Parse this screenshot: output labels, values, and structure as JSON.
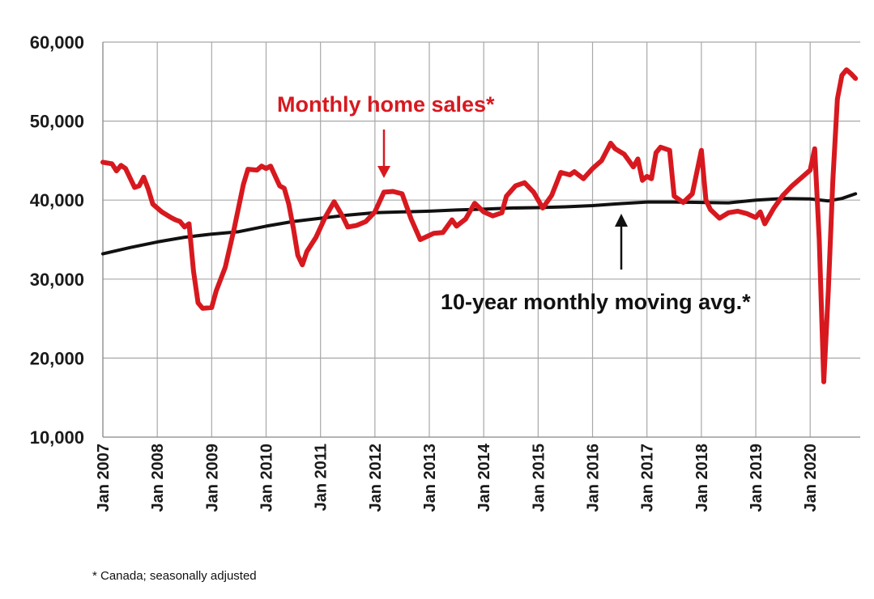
{
  "chart_data": {
    "type": "line",
    "ylim": [
      10000,
      60000
    ],
    "yticks": [
      10000,
      20000,
      30000,
      40000,
      50000,
      60000
    ],
    "ytick_labels": [
      "10,000",
      "20,000",
      "30,000",
      "40,000",
      "50,000",
      "60,000"
    ],
    "xticks": [
      "Jan 2007",
      "Jan 2008",
      "Jan 2009",
      "Jan 2010",
      "Jan 2011",
      "Jan 2012",
      "Jan 2013",
      "Jan 2014",
      "Jan 2015",
      "Jan 2016",
      "Jan 2017",
      "Jan 2018",
      "Jan 2019",
      "Jan 2020"
    ],
    "grid": true,
    "series": [
      {
        "name": "Monthly home sales*",
        "color": "#d7191f",
        "points": [
          [
            "2007-01",
            44800
          ],
          [
            "2007-03",
            44600
          ],
          [
            "2007-04",
            43700
          ],
          [
            "2007-05",
            44400
          ],
          [
            "2007-06",
            44000
          ],
          [
            "2007-08",
            41600
          ],
          [
            "2007-09",
            41800
          ],
          [
            "2007-10",
            42900
          ],
          [
            "2007-11",
            41400
          ],
          [
            "2007-12",
            39500
          ],
          [
            "2008-02",
            38500
          ],
          [
            "2008-04",
            37800
          ],
          [
            "2008-05",
            37500
          ],
          [
            "2008-06",
            37300
          ],
          [
            "2008-07",
            36600
          ],
          [
            "2008-08",
            37000
          ],
          [
            "2008-09",
            31000
          ],
          [
            "2008-10",
            27000
          ],
          [
            "2008-11",
            26300
          ],
          [
            "2009-01",
            26400
          ],
          [
            "2009-02",
            28500
          ],
          [
            "2009-04",
            31500
          ],
          [
            "2009-06",
            36500
          ],
          [
            "2009-08",
            42000
          ],
          [
            "2009-09",
            43900
          ],
          [
            "2009-11",
            43800
          ],
          [
            "2009-12",
            44300
          ],
          [
            "2010-01",
            44000
          ],
          [
            "2010-02",
            44300
          ],
          [
            "2010-04",
            41800
          ],
          [
            "2010-05",
            41500
          ],
          [
            "2010-06",
            39500
          ],
          [
            "2010-07",
            36500
          ],
          [
            "2010-08",
            33000
          ],
          [
            "2010-09",
            31800
          ],
          [
            "2010-10",
            33500
          ],
          [
            "2010-12",
            35300
          ],
          [
            "2011-02",
            37800
          ],
          [
            "2011-04",
            39800
          ],
          [
            "2011-06",
            37800
          ],
          [
            "2011-07",
            36600
          ],
          [
            "2011-09",
            36800
          ],
          [
            "2011-11",
            37300
          ],
          [
            "2012-01",
            38500
          ],
          [
            "2012-03",
            41000
          ],
          [
            "2012-05",
            41100
          ],
          [
            "2012-07",
            40800
          ],
          [
            "2012-09",
            37600
          ],
          [
            "2012-11",
            35000
          ],
          [
            "2013-02",
            35800
          ],
          [
            "2013-04",
            35900
          ],
          [
            "2013-06",
            37500
          ],
          [
            "2013-07",
            36700
          ],
          [
            "2013-09",
            37600
          ],
          [
            "2013-11",
            39600
          ],
          [
            "2014-01",
            38500
          ],
          [
            "2014-03",
            38000
          ],
          [
            "2014-05",
            38400
          ],
          [
            "2014-06",
            40500
          ],
          [
            "2014-08",
            41800
          ],
          [
            "2014-10",
            42200
          ],
          [
            "2014-12",
            41000
          ],
          [
            "2015-02",
            39000
          ],
          [
            "2015-04",
            40600
          ],
          [
            "2015-06",
            43500
          ],
          [
            "2015-08",
            43200
          ],
          [
            "2015-09",
            43600
          ],
          [
            "2015-11",
            42700
          ],
          [
            "2016-01",
            44000
          ],
          [
            "2016-03",
            45000
          ],
          [
            "2016-05",
            47200
          ],
          [
            "2016-06",
            46500
          ],
          [
            "2016-08",
            45800
          ],
          [
            "2016-09",
            45000
          ],
          [
            "2016-10",
            44200
          ],
          [
            "2016-11",
            45200
          ],
          [
            "2016-12",
            42500
          ],
          [
            "2017-01",
            43000
          ],
          [
            "2017-02",
            42700
          ],
          [
            "2017-03",
            46000
          ],
          [
            "2017-04",
            46700
          ],
          [
            "2017-06",
            46300
          ],
          [
            "2017-07",
            40500
          ],
          [
            "2017-09",
            39700
          ],
          [
            "2017-11",
            40800
          ],
          [
            "2018-01",
            46300
          ],
          [
            "2018-02",
            40000
          ],
          [
            "2018-03",
            38800
          ],
          [
            "2018-05",
            37700
          ],
          [
            "2018-07",
            38400
          ],
          [
            "2018-09",
            38600
          ],
          [
            "2018-11",
            38300
          ],
          [
            "2019-01",
            37800
          ],
          [
            "2019-02",
            38500
          ],
          [
            "2019-03",
            37000
          ],
          [
            "2019-05",
            39000
          ],
          [
            "2019-07",
            40600
          ],
          [
            "2019-09",
            41800
          ],
          [
            "2019-11",
            42800
          ],
          [
            "2020-01",
            43800
          ],
          [
            "2020-02",
            46500
          ],
          [
            "2020-03",
            35000
          ],
          [
            "2020-04",
            17000
          ],
          [
            "2020-05",
            28500
          ],
          [
            "2020-06",
            42500
          ],
          [
            "2020-07",
            52800
          ],
          [
            "2020-08",
            55800
          ],
          [
            "2020-09",
            56500
          ],
          [
            "2020-10",
            56000
          ],
          [
            "2020-11",
            55400
          ]
        ]
      },
      {
        "name": "10-year monthly moving avg.*",
        "color": "#111111",
        "points": [
          [
            "2007-01",
            33200
          ],
          [
            "2007-07",
            34000
          ],
          [
            "2008-01",
            34700
          ],
          [
            "2008-07",
            35300
          ],
          [
            "2009-01",
            35700
          ],
          [
            "2009-07",
            36000
          ],
          [
            "2010-01",
            36700
          ],
          [
            "2010-07",
            37300
          ],
          [
            "2011-01",
            37700
          ],
          [
            "2011-07",
            38100
          ],
          [
            "2012-01",
            38400
          ],
          [
            "2012-07",
            38500
          ],
          [
            "2013-01",
            38600
          ],
          [
            "2013-07",
            38750
          ],
          [
            "2014-01",
            38850
          ],
          [
            "2014-07",
            39000
          ],
          [
            "2015-01",
            39050
          ],
          [
            "2015-07",
            39150
          ],
          [
            "2016-01",
            39300
          ],
          [
            "2016-07",
            39550
          ],
          [
            "2017-01",
            39750
          ],
          [
            "2017-07",
            39750
          ],
          [
            "2018-01",
            39700
          ],
          [
            "2018-07",
            39650
          ],
          [
            "2019-01",
            40000
          ],
          [
            "2019-07",
            40200
          ],
          [
            "2020-01",
            40150
          ],
          [
            "2020-05",
            39900
          ],
          [
            "2020-08",
            40200
          ],
          [
            "2020-11",
            40800
          ]
        ]
      }
    ],
    "annotations": {
      "red_label": "Monthly home sales*",
      "black_label": "10-year monthly moving avg.*"
    }
  },
  "footnote": "* Canada; seasonally adjusted"
}
